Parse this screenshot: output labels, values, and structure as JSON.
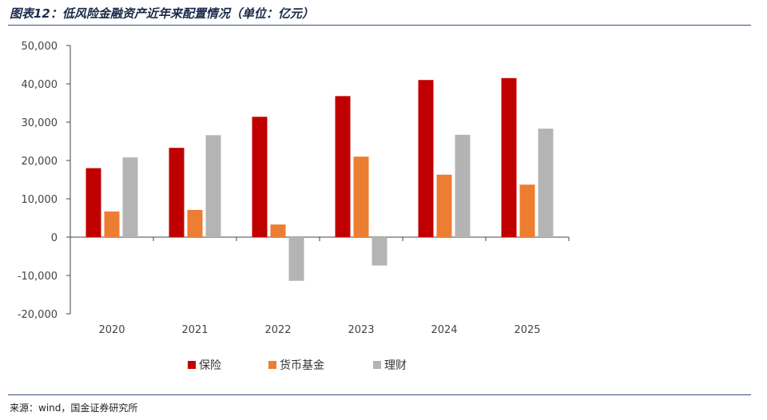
{
  "title": "图表12：低风险金融资产近年来配置情况（单位：亿元）",
  "source": "来源：wind，国金证券研究所",
  "chart_data": {
    "type": "bar",
    "categories": [
      "2020",
      "2021",
      "2022",
      "2023",
      "2024",
      "2025"
    ],
    "ylim": [
      -20000,
      50000
    ],
    "yticks": [
      -20000,
      -10000,
      0,
      10000,
      20000,
      30000,
      40000,
      50000
    ],
    "ytick_labels": [
      "-20,000",
      "-10,000",
      "0",
      "10,000",
      "20,000",
      "30,000",
      "40,000",
      "50,000"
    ],
    "legend_position": "bottom",
    "grid": false,
    "series": [
      {
        "name": "保险",
        "color": "#c00000",
        "values": [
          18000,
          23300,
          31400,
          36800,
          41000,
          41500
        ]
      },
      {
        "name": "货币基金",
        "color": "#ed7d31",
        "values": [
          6700,
          7100,
          3300,
          21000,
          16300,
          13700
        ]
      },
      {
        "name": "理财",
        "color": "#b4b4b4",
        "values": [
          20800,
          26600,
          -11400,
          -7400,
          26700,
          28300
        ]
      }
    ]
  }
}
